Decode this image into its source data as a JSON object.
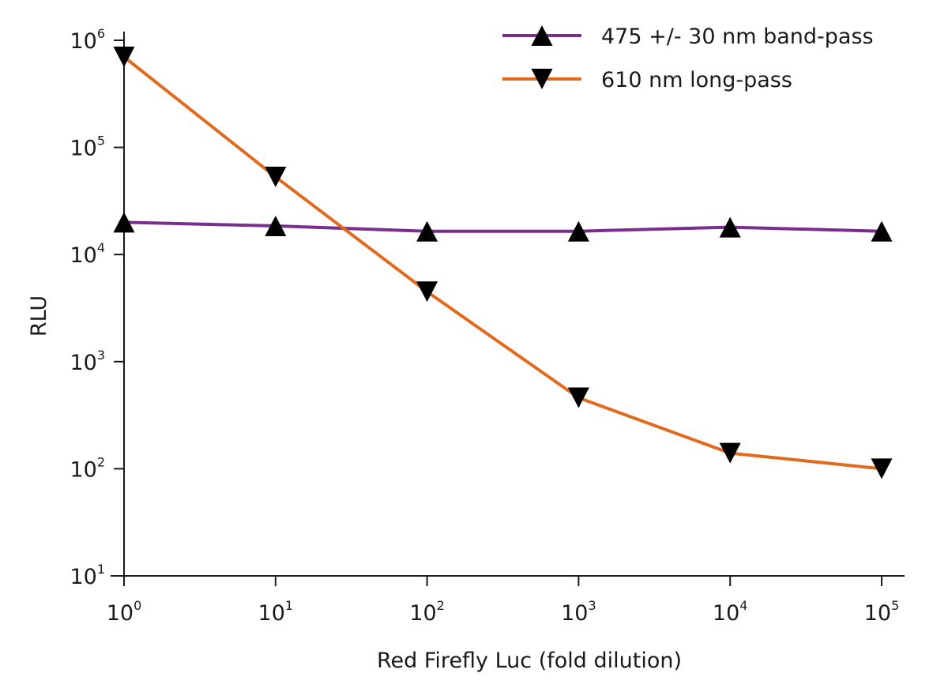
{
  "chart_data": {
    "type": "line",
    "xlabel": "Red Firefly Luc (fold dilution)",
    "ylabel": "RLU",
    "x_scale": "log",
    "y_scale": "log",
    "xlim": [
      1,
      100000
    ],
    "ylim": [
      10,
      1000000
    ],
    "x": [
      1,
      10,
      100,
      1000,
      10000,
      100000
    ],
    "x_ticks": [
      {
        "value": 1,
        "base": "10",
        "exp": "0"
      },
      {
        "value": 10,
        "base": "10",
        "exp": "1"
      },
      {
        "value": 100,
        "base": "10",
        "exp": "2"
      },
      {
        "value": 1000,
        "base": "10",
        "exp": "3"
      },
      {
        "value": 10000,
        "base": "10",
        "exp": "4"
      },
      {
        "value": 100000,
        "base": "10",
        "exp": "5"
      }
    ],
    "y_ticks": [
      {
        "value": 10,
        "base": "10",
        "exp": "1"
      },
      {
        "value": 100,
        "base": "10",
        "exp": "2"
      },
      {
        "value": 1000,
        "base": "10",
        "exp": "3"
      },
      {
        "value": 10000,
        "base": "10",
        "exp": "4"
      },
      {
        "value": 100000,
        "base": "10",
        "exp": "5"
      },
      {
        "value": 1000000,
        "base": "10",
        "exp": "6"
      }
    ],
    "grid": false,
    "legend_position": "top-right",
    "series": [
      {
        "name": "475 +/- 30 nm band-pass",
        "color": "#7b2d8e",
        "marker": "triangle-up",
        "values": [
          20000,
          18500,
          16500,
          16500,
          18000,
          16500
        ]
      },
      {
        "name": "610 nm long-pass",
        "color": "#e06a1e",
        "marker": "triangle-down",
        "values": [
          700000,
          53000,
          4500,
          460,
          140,
          100
        ]
      }
    ]
  }
}
